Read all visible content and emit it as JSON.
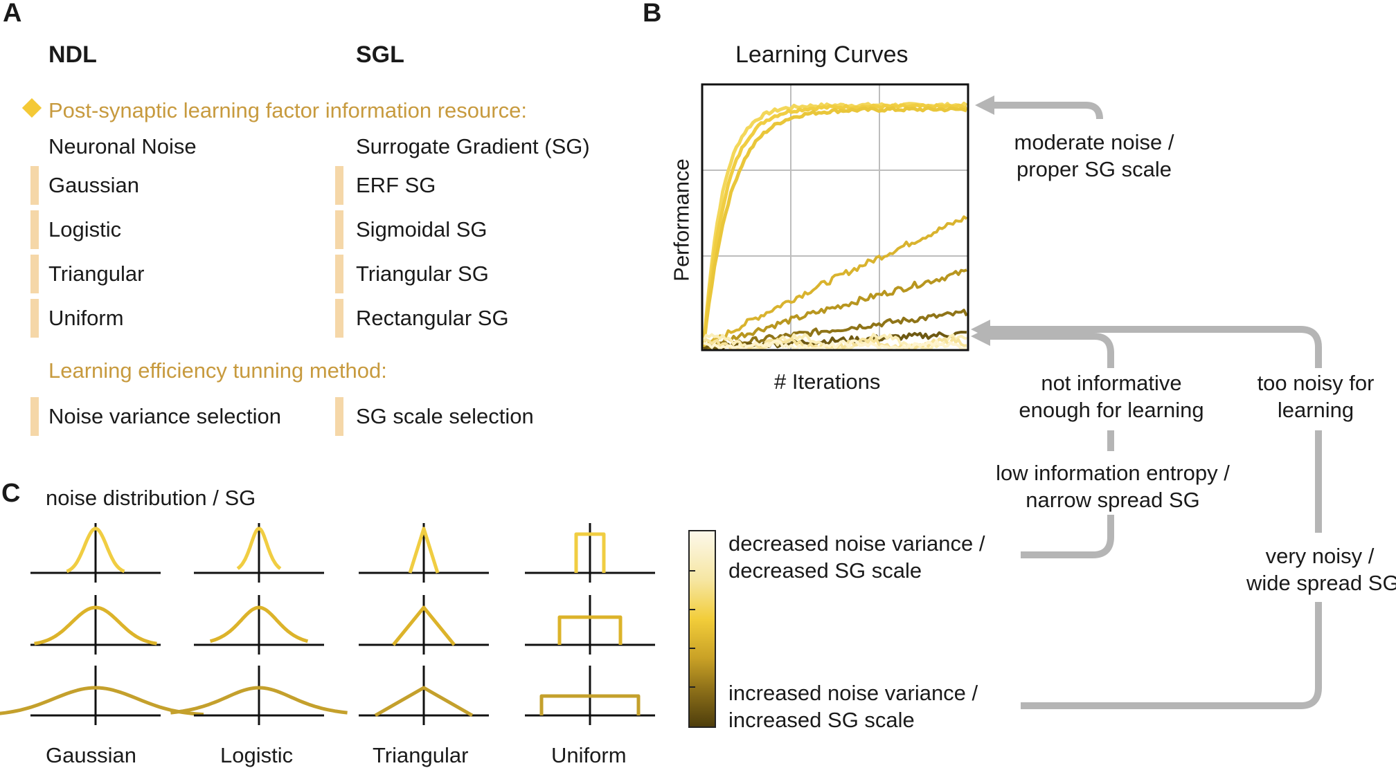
{
  "panels": {
    "a": "A",
    "b": "B",
    "c": "C"
  },
  "panel_a": {
    "col_ndl": "NDL",
    "col_sgl": "SGL",
    "section1_title": "Post-synaptic learning factor information resource:",
    "ndl_header": "Neuronal Noise",
    "sgl_header": "Surrogate Gradient (SG)",
    "ndl_items": [
      "Gaussian",
      "Logistic",
      "Triangular",
      "Uniform"
    ],
    "sgl_items": [
      "ERF SG",
      "Sigmoidal SG",
      "Triangular SG",
      "Rectangular SG"
    ],
    "section2_title": "Learning efficiency tunning method:",
    "ndl_method": "Noise variance selection",
    "sgl_method": "SG scale selection"
  },
  "panel_b": {
    "title": "Learning Curves",
    "ylabel": "Performance",
    "xlabel": "# Iterations",
    "ann_moderate": [
      "moderate noise /",
      "proper SG scale"
    ],
    "ann_not_informative": [
      "not informative",
      "enough for learning"
    ],
    "ann_too_noisy": [
      "too noisy for",
      "learning"
    ],
    "ann_low_entropy": [
      "low information entropy /",
      "narrow spread SG"
    ],
    "ann_very_noisy": [
      "very noisy /",
      "wide spread SG"
    ]
  },
  "legend": {
    "top_label": [
      "decreased noise variance /",
      "decreased SG scale"
    ],
    "bottom_label": [
      "increased noise variance /",
      "increased SG scale"
    ]
  },
  "panel_c": {
    "title": "noise distribution / SG",
    "columns": [
      "Gaussian",
      "Logistic",
      "Triangular",
      "Uniform"
    ]
  },
  "colors": {
    "accent_orange": "#c79a3e",
    "bar_fill": "#f5d7a8",
    "diamond": "#f4c936",
    "arrow_gray": "#b5b5b5",
    "row_colors": [
      "#f0cd42",
      "#dcb32a",
      "#c4a02c"
    ],
    "colorbar_top": "#fcf8ea",
    "colorbar_mid": "#f2cd3a",
    "colorbar_bottom": "#4e3e0c"
  }
}
